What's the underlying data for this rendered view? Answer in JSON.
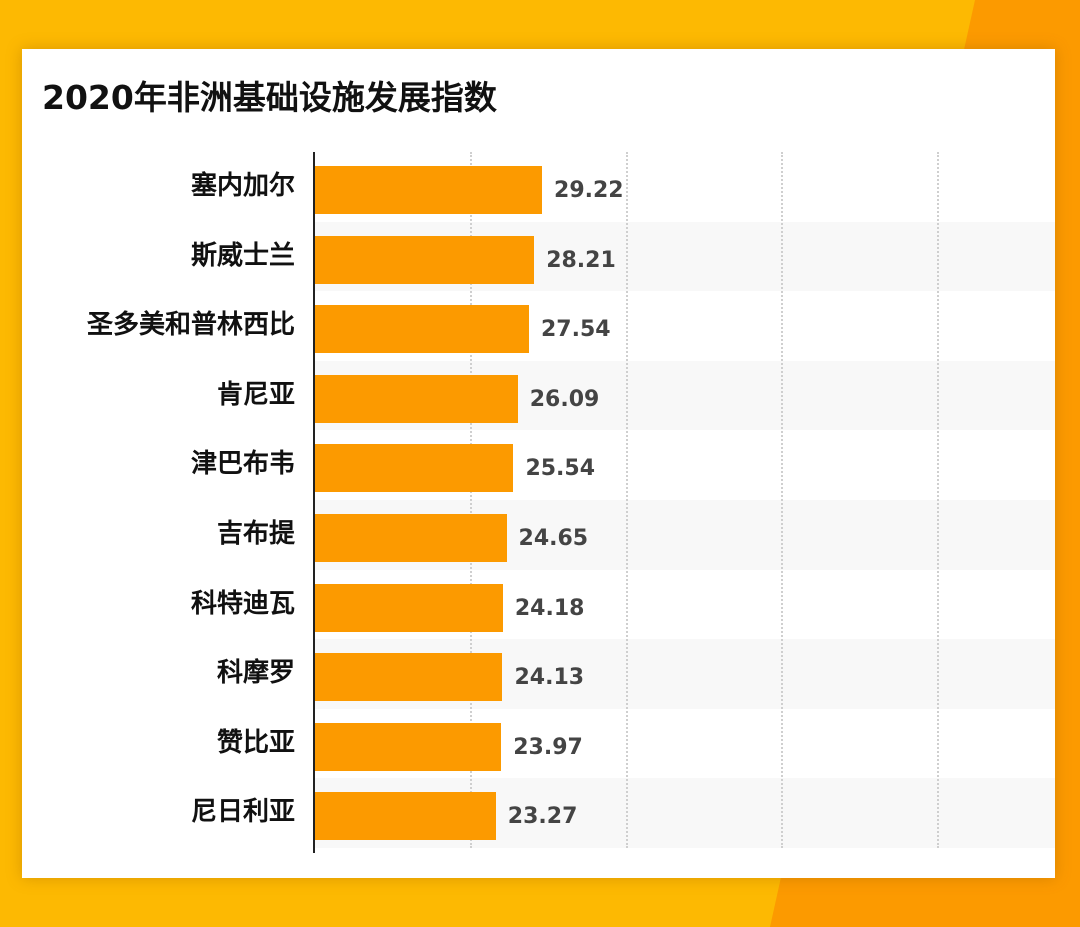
{
  "title": "2020年非洲基础设施发展指数",
  "colors": {
    "background": "#FDB902",
    "background_accent": "#FC9A00",
    "bar": "#FC9A00",
    "card": "#FFFFFF",
    "stripe": "#F8F8F8"
  },
  "rows": [
    {
      "label": "塞内加尔",
      "value": "29.22"
    },
    {
      "label": "斯威士兰",
      "value": "28.21"
    },
    {
      "label": "圣多美和普林西比",
      "value": "27.54"
    },
    {
      "label": "肯尼亚",
      "value": "26.09"
    },
    {
      "label": "津巴布韦",
      "value": "25.54"
    },
    {
      "label": "吉布提",
      "value": "24.65"
    },
    {
      "label": "科特迪瓦",
      "value": "24.18"
    },
    {
      "label": "科摩罗",
      "value": "24.13"
    },
    {
      "label": "赞比亚",
      "value": "23.97"
    },
    {
      "label": "尼日利亚",
      "value": "23.27"
    }
  ],
  "chart_data": {
    "type": "bar",
    "orientation": "horizontal",
    "title": "2020年非洲基础设施发展指数",
    "categories": [
      "塞内加尔",
      "斯威士兰",
      "圣多美和普林西比",
      "肯尼亚",
      "津巴布韦",
      "吉布提",
      "科特迪瓦",
      "科摩罗",
      "赞比亚",
      "尼日利亚"
    ],
    "values": [
      29.22,
      28.21,
      27.54,
      26.09,
      25.54,
      24.65,
      24.18,
      24.13,
      23.97,
      23.27
    ],
    "xlabel": "",
    "ylabel": "",
    "xlim": [
      0,
      92
    ],
    "gridlines_at": [
      20,
      40,
      60,
      80
    ],
    "grid": true,
    "grid_style": "dotted vertical",
    "data_labels": true,
    "legend": "none"
  }
}
